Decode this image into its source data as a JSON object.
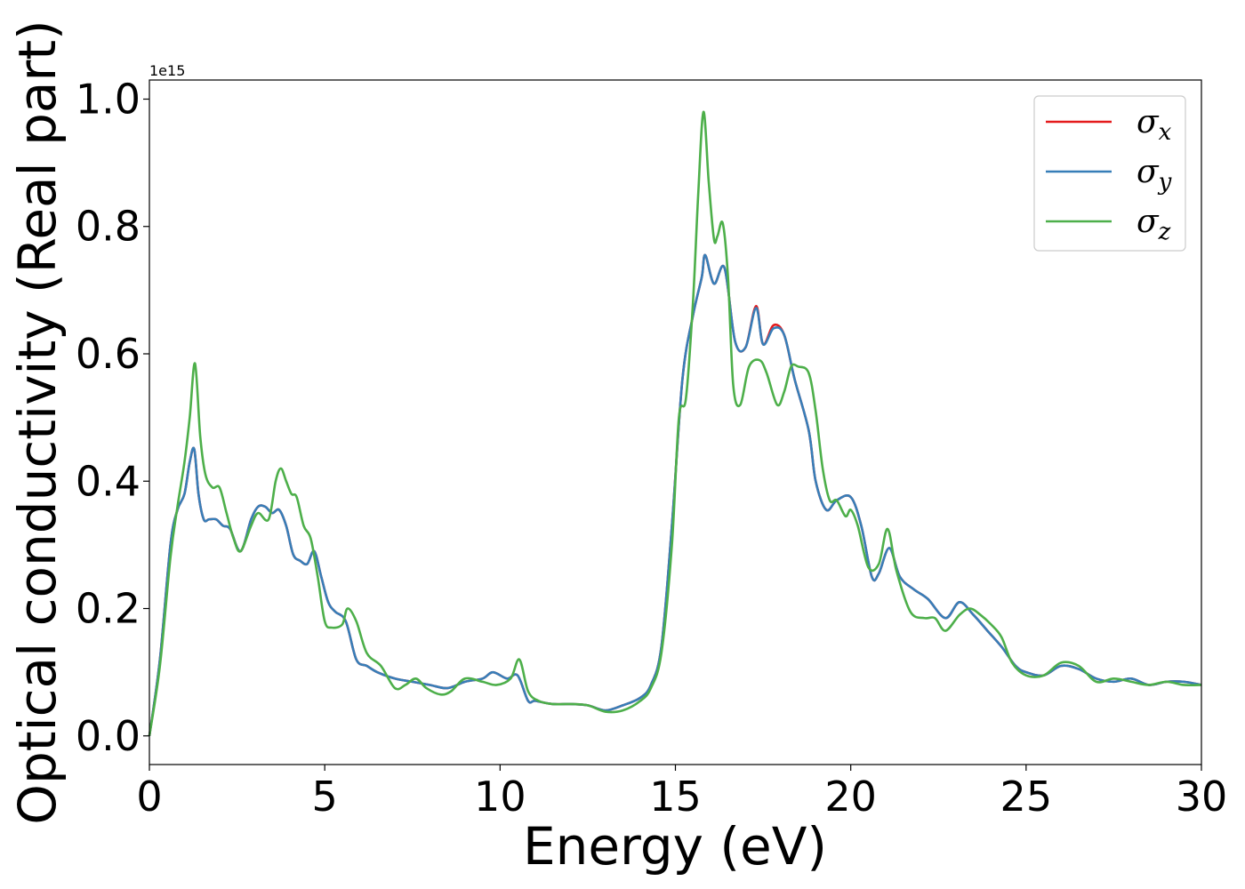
{
  "chart_data": {
    "type": "line",
    "title": "",
    "xlabel": "Energy (eV)",
    "ylabel": "Optical conductivity (Real part)",
    "y_offset_label": "1e15",
    "xlim": [
      0,
      30
    ],
    "ylim": [
      -0.045,
      1.03
    ],
    "xticks": [
      0,
      5,
      10,
      15,
      20,
      25,
      30
    ],
    "xtick_labels": [
      "0",
      "5",
      "10",
      "15",
      "20",
      "25",
      "30"
    ],
    "yticks": [
      0.0,
      0.2,
      0.4,
      0.6,
      0.8,
      1.0
    ],
    "ytick_labels": [
      "0.0",
      "0.2",
      "0.4",
      "0.6",
      "0.8",
      "1.0"
    ],
    "grid": false,
    "legend_position": "top-right",
    "series": [
      {
        "name": "σx",
        "symbol": "σ",
        "subscript": "x",
        "color": "#e41a1c",
        "x": [
          0,
          0.3,
          0.6,
          0.8,
          1.0,
          1.15,
          1.28,
          1.4,
          1.55,
          1.7,
          1.9,
          2.1,
          2.3,
          2.6,
          2.9,
          3.1,
          3.3,
          3.5,
          3.7,
          3.9,
          4.1,
          4.3,
          4.5,
          4.7,
          4.9,
          5.1,
          5.3,
          5.6,
          5.9,
          6.2,
          6.5,
          7.0,
          7.5,
          8.0,
          8.5,
          9.0,
          9.5,
          9.8,
          10.2,
          10.5,
          10.8,
          11.0,
          11.5,
          12.0,
          12.5,
          13.0,
          13.5,
          14.0,
          14.3,
          14.6,
          14.9,
          15.2,
          15.5,
          15.75,
          15.85,
          16.1,
          16.4,
          16.7,
          17.0,
          17.3,
          17.5,
          17.8,
          18.1,
          18.4,
          18.8,
          19.0,
          19.3,
          19.6,
          20.0,
          20.3,
          20.6,
          20.8,
          21.1,
          21.4,
          21.8,
          22.2,
          22.7,
          23.1,
          23.5,
          23.9,
          24.3,
          24.7,
          25.0,
          25.5,
          26.0,
          26.5,
          27.0,
          27.5,
          28.0,
          28.5,
          29.0,
          29.5,
          30.0
        ],
        "y": [
          0.0,
          0.12,
          0.3,
          0.355,
          0.38,
          0.43,
          0.45,
          0.38,
          0.34,
          0.34,
          0.34,
          0.33,
          0.325,
          0.29,
          0.34,
          0.36,
          0.36,
          0.35,
          0.355,
          0.33,
          0.285,
          0.275,
          0.27,
          0.29,
          0.25,
          0.21,
          0.195,
          0.18,
          0.12,
          0.11,
          0.1,
          0.09,
          0.085,
          0.08,
          0.075,
          0.085,
          0.09,
          0.1,
          0.09,
          0.095,
          0.055,
          0.055,
          0.05,
          0.05,
          0.048,
          0.04,
          0.048,
          0.06,
          0.08,
          0.14,
          0.33,
          0.56,
          0.66,
          0.72,
          0.755,
          0.71,
          0.735,
          0.62,
          0.61,
          0.675,
          0.615,
          0.645,
          0.63,
          0.56,
          0.48,
          0.4,
          0.355,
          0.37,
          0.375,
          0.33,
          0.25,
          0.255,
          0.295,
          0.25,
          0.23,
          0.215,
          0.185,
          0.21,
          0.19,
          0.165,
          0.14,
          0.11,
          0.1,
          0.095,
          0.11,
          0.105,
          0.09,
          0.085,
          0.09,
          0.08,
          0.085,
          0.085,
          0.08
        ]
      },
      {
        "name": "σy",
        "symbol": "σ",
        "subscript": "y",
        "color": "#377eb8",
        "x": [
          0,
          0.3,
          0.6,
          0.8,
          1.0,
          1.15,
          1.28,
          1.4,
          1.55,
          1.7,
          1.9,
          2.1,
          2.3,
          2.6,
          2.9,
          3.1,
          3.3,
          3.5,
          3.7,
          3.9,
          4.1,
          4.3,
          4.5,
          4.7,
          4.9,
          5.1,
          5.3,
          5.6,
          5.9,
          6.2,
          6.5,
          7.0,
          7.5,
          8.0,
          8.5,
          9.0,
          9.5,
          9.8,
          10.2,
          10.5,
          10.8,
          11.0,
          11.5,
          12.0,
          12.5,
          13.0,
          13.5,
          14.0,
          14.3,
          14.6,
          14.9,
          15.2,
          15.5,
          15.75,
          15.85,
          16.1,
          16.4,
          16.7,
          17.0,
          17.3,
          17.5,
          17.8,
          18.1,
          18.4,
          18.8,
          19.0,
          19.3,
          19.6,
          20.0,
          20.3,
          20.6,
          20.8,
          21.1,
          21.4,
          21.8,
          22.2,
          22.7,
          23.1,
          23.5,
          23.9,
          24.3,
          24.7,
          25.0,
          25.5,
          26.0,
          26.5,
          27.0,
          27.5,
          28.0,
          28.5,
          29.0,
          29.5,
          30.0
        ],
        "y": [
          0.0,
          0.12,
          0.3,
          0.355,
          0.38,
          0.43,
          0.45,
          0.38,
          0.34,
          0.34,
          0.34,
          0.33,
          0.325,
          0.29,
          0.34,
          0.36,
          0.36,
          0.35,
          0.355,
          0.33,
          0.285,
          0.275,
          0.27,
          0.29,
          0.25,
          0.21,
          0.195,
          0.18,
          0.12,
          0.11,
          0.1,
          0.09,
          0.085,
          0.08,
          0.075,
          0.085,
          0.09,
          0.1,
          0.09,
          0.095,
          0.055,
          0.055,
          0.05,
          0.05,
          0.048,
          0.04,
          0.048,
          0.06,
          0.08,
          0.14,
          0.33,
          0.56,
          0.66,
          0.72,
          0.755,
          0.71,
          0.735,
          0.62,
          0.61,
          0.672,
          0.615,
          0.64,
          0.63,
          0.56,
          0.48,
          0.4,
          0.355,
          0.37,
          0.375,
          0.33,
          0.25,
          0.255,
          0.295,
          0.25,
          0.23,
          0.215,
          0.185,
          0.21,
          0.19,
          0.165,
          0.14,
          0.11,
          0.1,
          0.095,
          0.11,
          0.105,
          0.09,
          0.085,
          0.09,
          0.08,
          0.085,
          0.085,
          0.08
        ]
      },
      {
        "name": "σz",
        "symbol": "σ",
        "subscript": "z",
        "color": "#4daf4a",
        "x": [
          0,
          0.3,
          0.6,
          0.8,
          1.0,
          1.15,
          1.3,
          1.45,
          1.6,
          1.8,
          2.0,
          2.2,
          2.4,
          2.6,
          2.9,
          3.1,
          3.4,
          3.6,
          3.75,
          3.9,
          4.05,
          4.2,
          4.4,
          4.6,
          4.8,
          5.0,
          5.2,
          5.5,
          5.65,
          5.9,
          6.2,
          6.6,
          7.0,
          7.3,
          7.6,
          7.9,
          8.3,
          8.6,
          9.0,
          9.5,
          9.9,
          10.3,
          10.55,
          10.8,
          11.1,
          11.5,
          12.0,
          12.5,
          13.0,
          13.5,
          14.0,
          14.3,
          14.6,
          14.9,
          15.1,
          15.3,
          15.5,
          15.65,
          15.8,
          15.95,
          16.1,
          16.2,
          16.35,
          16.5,
          16.65,
          16.85,
          17.1,
          17.4,
          17.6,
          17.9,
          18.1,
          18.3,
          18.5,
          18.8,
          19.0,
          19.2,
          19.4,
          19.6,
          19.85,
          20.0,
          20.2,
          20.5,
          20.8,
          21.05,
          21.3,
          21.7,
          22.1,
          22.4,
          22.7,
          23.1,
          23.4,
          23.7,
          24.0,
          24.3,
          24.6,
          25.0,
          25.5,
          26.0,
          26.5,
          27.0,
          27.5,
          28.0,
          28.5,
          29.0,
          29.5,
          30.0
        ],
        "y": [
          0.0,
          0.11,
          0.28,
          0.36,
          0.43,
          0.5,
          0.585,
          0.47,
          0.41,
          0.39,
          0.39,
          0.35,
          0.31,
          0.29,
          0.33,
          0.35,
          0.34,
          0.4,
          0.42,
          0.4,
          0.38,
          0.375,
          0.33,
          0.31,
          0.25,
          0.18,
          0.17,
          0.175,
          0.2,
          0.18,
          0.13,
          0.11,
          0.075,
          0.08,
          0.09,
          0.075,
          0.065,
          0.07,
          0.09,
          0.085,
          0.08,
          0.09,
          0.12,
          0.07,
          0.055,
          0.05,
          0.05,
          0.048,
          0.038,
          0.04,
          0.055,
          0.075,
          0.13,
          0.3,
          0.5,
          0.53,
          0.68,
          0.85,
          0.98,
          0.87,
          0.78,
          0.785,
          0.805,
          0.72,
          0.55,
          0.52,
          0.58,
          0.59,
          0.57,
          0.52,
          0.54,
          0.58,
          0.58,
          0.57,
          0.51,
          0.42,
          0.37,
          0.37,
          0.345,
          0.355,
          0.33,
          0.265,
          0.27,
          0.325,
          0.26,
          0.195,
          0.185,
          0.185,
          0.165,
          0.19,
          0.2,
          0.19,
          0.175,
          0.155,
          0.115,
          0.095,
          0.095,
          0.115,
          0.11,
          0.085,
          0.09,
          0.085,
          0.08,
          0.085,
          0.08,
          0.08
        ]
      }
    ]
  }
}
